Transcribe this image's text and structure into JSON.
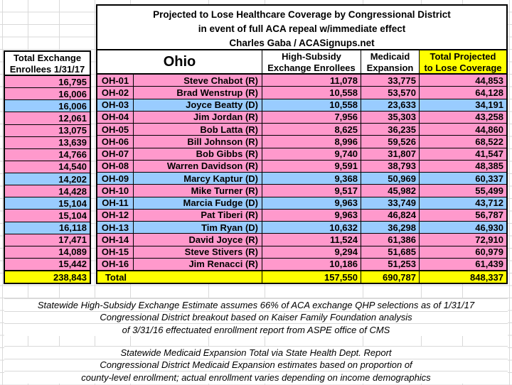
{
  "colors": {
    "pink": "#FF99CC",
    "blue": "#99CCFF",
    "yellow": "#FFFF00",
    "border": "#000000",
    "gridline": "#d9d9d9"
  },
  "title": {
    "line1": "Projected to Lose Healthcare Coverage by Congressional District",
    "line2": "in event of full ACA repeal w/immediate effect",
    "line3": "Charles Gaba / ACASignups.net"
  },
  "left_panel": {
    "header_line1": "Total Exchange",
    "header_line2": "Enrollees 1/31/17",
    "values": [
      "16,795",
      "16,006",
      "16,006",
      "12,061",
      "13,075",
      "13,639",
      "14,766",
      "14,540",
      "14,202",
      "14,428",
      "15,104",
      "15,104",
      "16,118",
      "17,471",
      "14,089",
      "15,442"
    ],
    "total": "238,843"
  },
  "table": {
    "state_label": "Ohio",
    "col_high_subsidy_line1": "High-Subsidy",
    "col_high_subsidy_line2": "Exchange Enrollees",
    "col_medicaid_line1": "Medicaid",
    "col_medicaid_line2": "Expansion",
    "col_total_line1": "Total Projected",
    "col_total_line2": "to Lose Coverage",
    "rows": [
      {
        "district": "OH-01",
        "rep": "Steve Chabot (R)",
        "party": "R",
        "high_subsidy": "11,078",
        "medicaid": "33,775",
        "total": "44,853"
      },
      {
        "district": "OH-02",
        "rep": "Brad Wenstrup (R)",
        "party": "R",
        "high_subsidy": "10,558",
        "medicaid": "53,570",
        "total": "64,128"
      },
      {
        "district": "OH-03",
        "rep": "Joyce Beatty (D)",
        "party": "D",
        "high_subsidy": "10,558",
        "medicaid": "23,633",
        "total": "34,191"
      },
      {
        "district": "OH-04",
        "rep": "Jim Jordan (R)",
        "party": "R",
        "high_subsidy": "7,956",
        "medicaid": "35,303",
        "total": "43,258"
      },
      {
        "district": "OH-05",
        "rep": "Bob Latta (R)",
        "party": "R",
        "high_subsidy": "8,625",
        "medicaid": "36,235",
        "total": "44,860"
      },
      {
        "district": "OH-06",
        "rep": "Bill Johnson (R)",
        "party": "R",
        "high_subsidy": "8,996",
        "medicaid": "59,526",
        "total": "68,522"
      },
      {
        "district": "OH-07",
        "rep": "Bob Gibbs (R)",
        "party": "R",
        "high_subsidy": "9,740",
        "medicaid": "31,807",
        "total": "41,547"
      },
      {
        "district": "OH-08",
        "rep": "Warren Davidson (R)",
        "party": "R",
        "high_subsidy": "9,591",
        "medicaid": "38,793",
        "total": "48,385"
      },
      {
        "district": "OH-09",
        "rep": "Marcy Kaptur (D)",
        "party": "D",
        "high_subsidy": "9,368",
        "medicaid": "50,969",
        "total": "60,337"
      },
      {
        "district": "OH-10",
        "rep": "Mike Turner (R)",
        "party": "R",
        "high_subsidy": "9,517",
        "medicaid": "45,982",
        "total": "55,499"
      },
      {
        "district": "OH-11",
        "rep": "Marcia Fudge (D)",
        "party": "D",
        "high_subsidy": "9,963",
        "medicaid": "33,749",
        "total": "43,712"
      },
      {
        "district": "OH-12",
        "rep": "Pat Tiberi (R)",
        "party": "R",
        "high_subsidy": "9,963",
        "medicaid": "46,824",
        "total": "56,787"
      },
      {
        "district": "OH-13",
        "rep": "Tim Ryan (D)",
        "party": "D",
        "high_subsidy": "10,632",
        "medicaid": "36,298",
        "total": "46,930"
      },
      {
        "district": "OH-14",
        "rep": "David Joyce (R)",
        "party": "R",
        "high_subsidy": "11,524",
        "medicaid": "61,386",
        "total": "72,910"
      },
      {
        "district": "OH-15",
        "rep": "Steve Stivers (R)",
        "party": "R",
        "high_subsidy": "9,294",
        "medicaid": "51,685",
        "total": "60,979"
      },
      {
        "district": "OH-16",
        "rep": "Jim Renacci (R)",
        "party": "R",
        "high_subsidy": "10,186",
        "medicaid": "51,253",
        "total": "61,439"
      }
    ],
    "total_row": {
      "label": "Total",
      "high_subsidy": "157,550",
      "medicaid": "690,787",
      "total": "848,337"
    }
  },
  "footnotes": {
    "block1": [
      "Statewide High-Subsidy Exchange Estimate assumes 66% of ACA exchange QHP selections as of 1/31/17",
      "Congressional District breakout based on Kaiser Family Foundation analysis",
      "of 3/31/16 effectuated enrollment report from ASPE office of CMS"
    ],
    "block2": [
      "Statewide Medicaid Expansion Total via State Health Dept. Report",
      "Congressional District Medicaid Expansion estimates based on proportion of",
      "county-level enrollment; actual enrollment varies depending on income demographics"
    ]
  }
}
